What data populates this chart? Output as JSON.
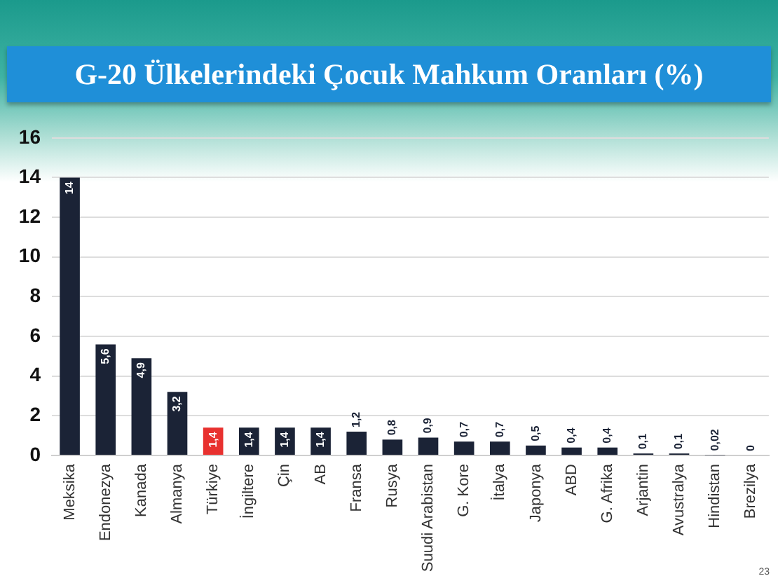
{
  "chart_data": {
    "type": "bar",
    "title": "G-20 Ülkelerindeki Çocuk Mahkum Oranları (%)",
    "categories": [
      "Meksika",
      "Endonezya",
      "Kanada",
      "Almanya",
      "Türkiye",
      "İngiltere",
      "Çin",
      "AB",
      "Fransa",
      "Rusya",
      "Suudi Arabistan",
      "G. Kore",
      "İtalya",
      "Japonya",
      "ABD",
      "G. Afrika",
      "Arjantin",
      "Avustralya",
      "Hindistan",
      "Brezilya"
    ],
    "values": [
      14,
      5.6,
      4.9,
      3.2,
      1.4,
      1.4,
      1.4,
      1.4,
      1.2,
      0.8,
      0.9,
      0.7,
      0.7,
      0.5,
      0.4,
      0.4,
      0.1,
      0.1,
      0.02,
      0
    ],
    "colors": [
      "#1b2336",
      "#1b2336",
      "#1b2336",
      "#1b2336",
      "#e8312f",
      "#1b2336",
      "#1b2336",
      "#1b2336",
      "#1b2336",
      "#1b2336",
      "#1b2336",
      "#1b2336",
      "#1b2336",
      "#1b2336",
      "#1b2336",
      "#1b2336",
      "#1b2336",
      "#1b2336",
      "#1b2336",
      "#1b2336"
    ],
    "value_labels": [
      "14",
      "5,6",
      "4,9",
      "3,2",
      "1,4",
      "1,4",
      "1,4",
      "1,4",
      "1,2",
      "0,8",
      "0,9",
      "0,7",
      "0,7",
      "0,5",
      "0,4",
      "0,4",
      "0,1",
      "0,1",
      "0,02",
      "0"
    ],
    "ylim": [
      0,
      16
    ],
    "yticks": [
      0,
      2,
      4,
      6,
      8,
      10,
      12,
      14,
      16
    ],
    "grid": "y",
    "annotations": [
      "23"
    ]
  }
}
